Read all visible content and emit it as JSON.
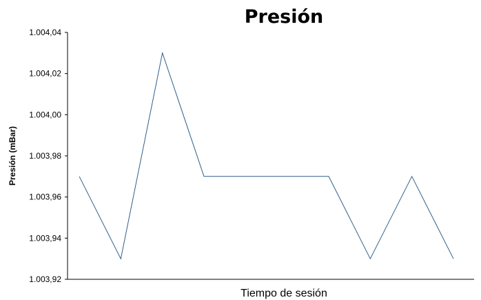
{
  "chart_data": {
    "type": "line",
    "title": "Presión",
    "xlabel": "Tiempo de sesión",
    "ylabel": "Presión (mBar)",
    "ylim": [
      1003.92,
      1004.04
    ],
    "yticks": [
      1003.92,
      1003.94,
      1003.96,
      1003.98,
      1004.0,
      1004.02,
      1004.04
    ],
    "ytick_labels": [
      "1.003,92",
      "1.003,94",
      "1.003,96",
      "1.003,98",
      "1.004,00",
      "1.004,02",
      "1.004,04"
    ],
    "grid": false,
    "series": [
      {
        "values": [
          1003.97,
          1003.93,
          1004.03,
          1003.97,
          1003.97,
          1003.97,
          1003.97,
          1003.93,
          1003.97,
          1003.93
        ],
        "color": "#2f5f8a"
      }
    ]
  }
}
